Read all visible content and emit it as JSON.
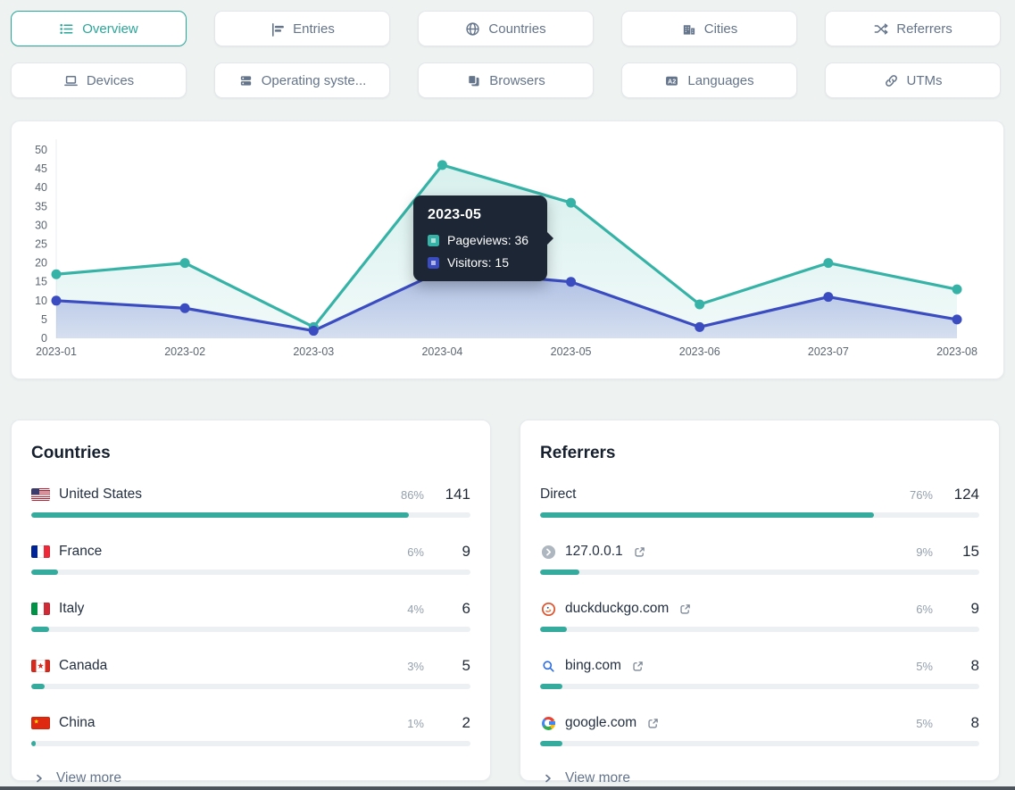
{
  "nav": {
    "row1": [
      {
        "label": "Overview",
        "active": true
      },
      {
        "label": "Entries"
      },
      {
        "label": "Countries"
      },
      {
        "label": "Cities"
      },
      {
        "label": "Referrers"
      }
    ],
    "row2": [
      {
        "label": "Devices"
      },
      {
        "label": "Operating syste..."
      },
      {
        "label": "Browsers"
      },
      {
        "label": "Languages"
      },
      {
        "label": "UTMs"
      }
    ]
  },
  "chart_data": {
    "type": "line",
    "title": "",
    "xlabel": "",
    "ylabel": "",
    "x": [
      "2023-01",
      "2023-02",
      "2023-03",
      "2023-04",
      "2023-05",
      "2023-06",
      "2023-07",
      "2023-08"
    ],
    "series": [
      {
        "name": "Pageviews",
        "color": "#36b3a6",
        "values": [
          17,
          20,
          3,
          46,
          36,
          9,
          20,
          13
        ]
      },
      {
        "name": "Visitors",
        "color": "#3a4cc0",
        "values": [
          10,
          8,
          2,
          18,
          15,
          3,
          11,
          5
        ]
      }
    ],
    "ylim": [
      0,
      50
    ],
    "ytick_step": 5,
    "grid": false,
    "legend_position": "tooltip",
    "tooltip": {
      "title": "2023-05",
      "rows": [
        {
          "text": "Pageviews: 36",
          "color": "#36b3a6"
        },
        {
          "text": "Visitors: 15",
          "color": "#3a4cc0"
        }
      ]
    }
  },
  "countries": {
    "title": "Countries",
    "rows": [
      {
        "label": "United States",
        "pct": "86%",
        "value": "141"
      },
      {
        "label": "France",
        "pct": "6%",
        "value": "9"
      },
      {
        "label": "Italy",
        "pct": "4%",
        "value": "6"
      },
      {
        "label": "Canada",
        "pct": "3%",
        "value": "5"
      },
      {
        "label": "China",
        "pct": "1%",
        "value": "2"
      }
    ],
    "view_more": "View more"
  },
  "referrers": {
    "title": "Referrers",
    "rows": [
      {
        "label": "Direct",
        "pct": "76%",
        "value": "124"
      },
      {
        "label": "127.0.0.1",
        "pct": "9%",
        "value": "15"
      },
      {
        "label": "duckduckgo.com",
        "pct": "6%",
        "value": "9"
      },
      {
        "label": "bing.com",
        "pct": "5%",
        "value": "8"
      },
      {
        "label": "google.com",
        "pct": "5%",
        "value": "8"
      }
    ],
    "view_more": "View more"
  },
  "colors": {
    "accent": "#2aa79a",
    "bar_fill": "#35ab9d",
    "pageviews_line": "#36b3a6",
    "visitors_line": "#3a4cc0",
    "tooltip_bg": "#1d2634"
  }
}
